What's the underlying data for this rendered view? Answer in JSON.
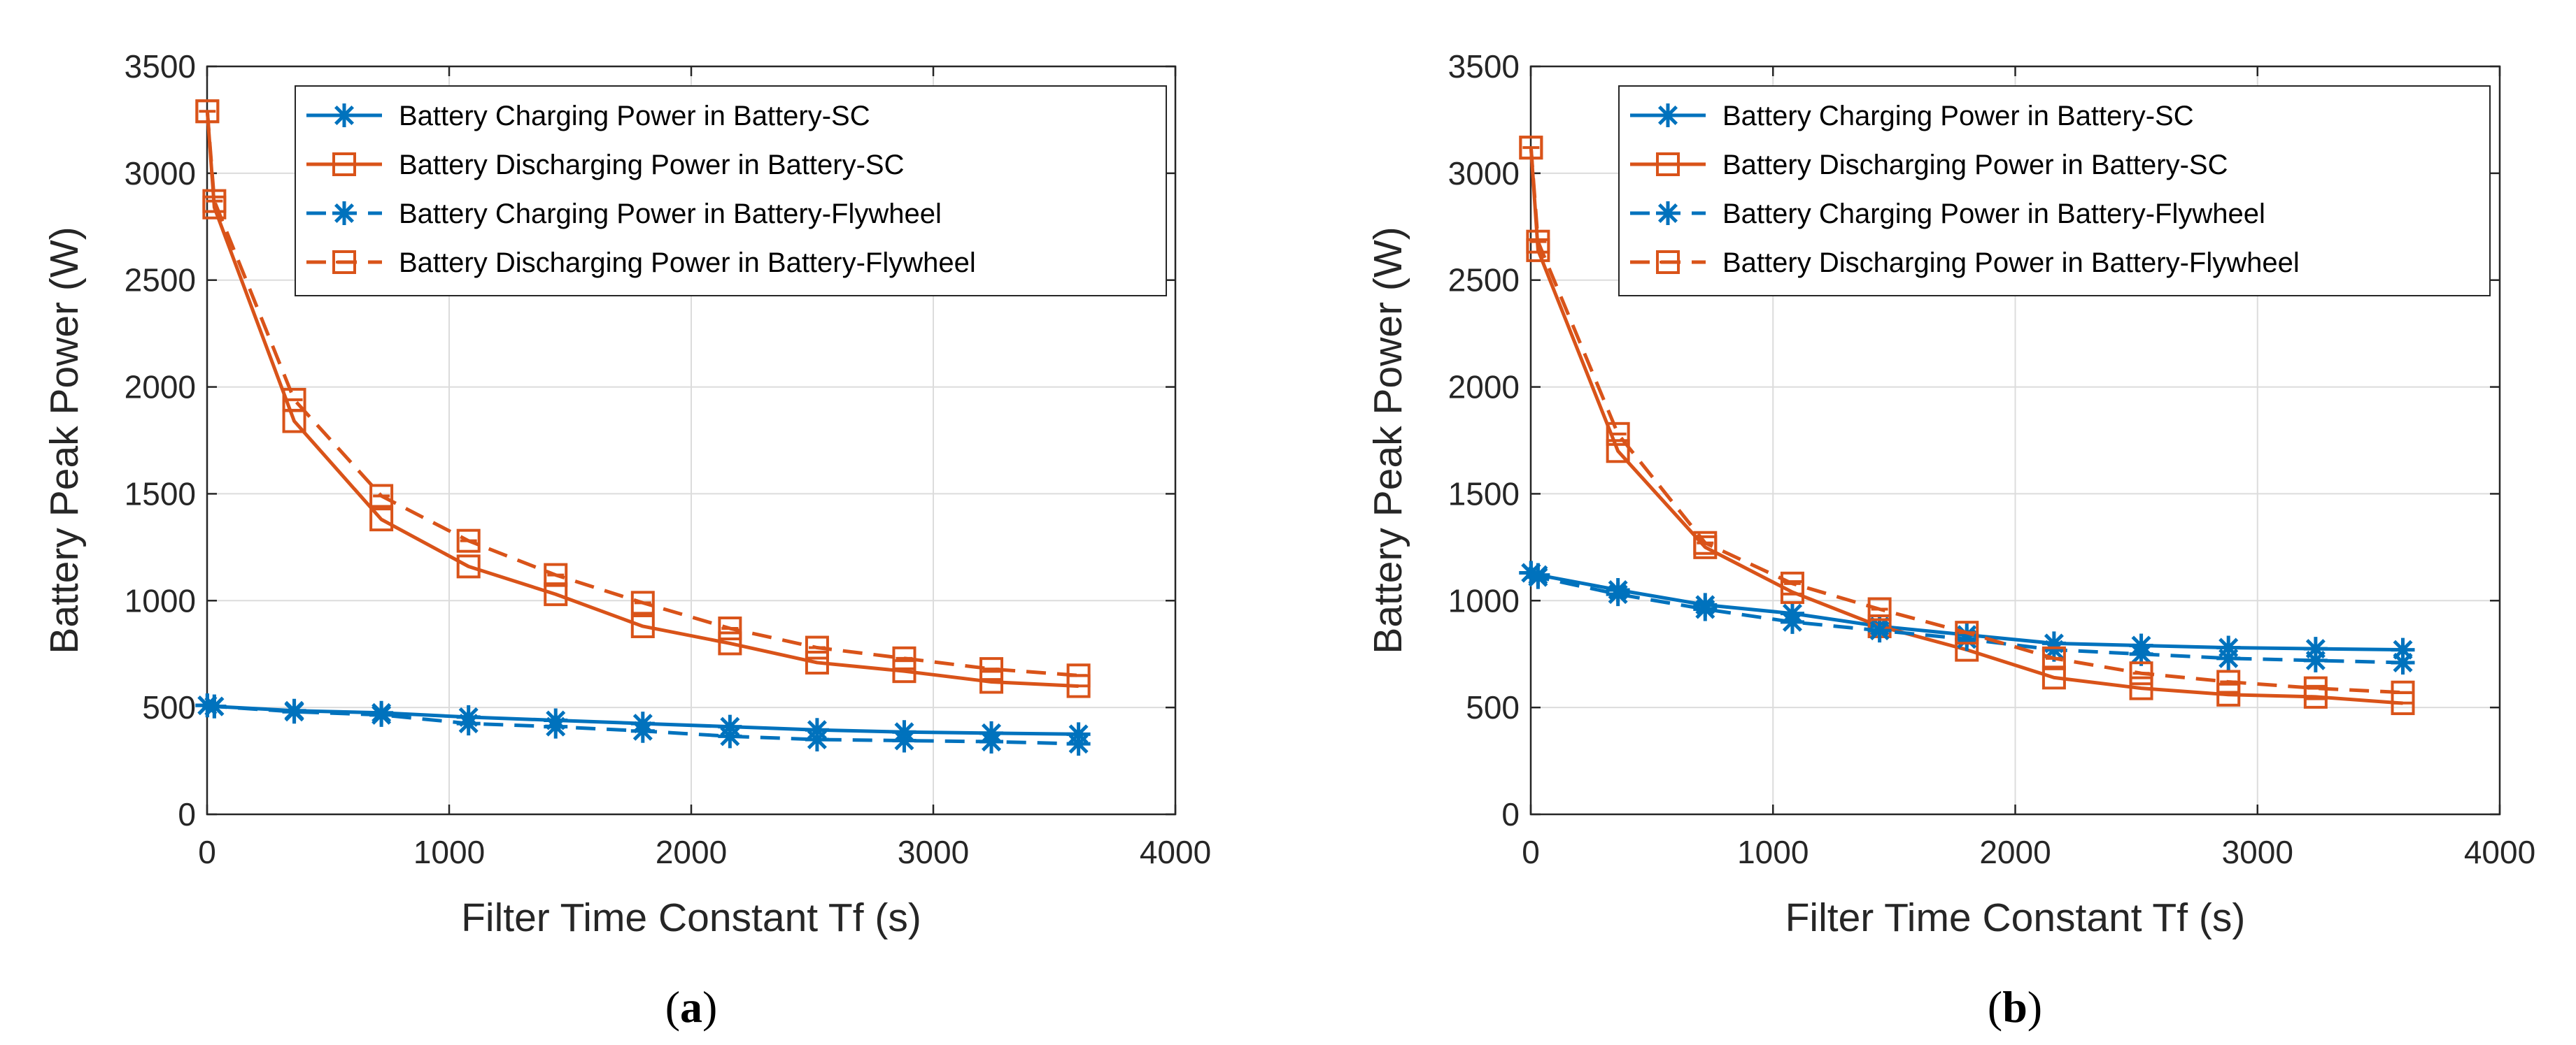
{
  "colors": {
    "blue": "#0072BD",
    "orange": "#D95319",
    "grid": "#dcdcdc",
    "axis": "#262626"
  },
  "chart_data": [
    {
      "type": "line",
      "panel_label": "a",
      "xlabel": "Filter Time Constant Tf (s)",
      "ylabel": "Battery Peak Power (W)",
      "xlim": [
        0,
        4000
      ],
      "ylim": [
        0,
        3500
      ],
      "xticks": [
        "0",
        "1000",
        "2000",
        "3000",
        "4000"
      ],
      "yticks": [
        "0",
        "500",
        "1000",
        "1500",
        "2000",
        "2500",
        "3000",
        "3500"
      ],
      "grid": true,
      "legend_position": "top-right",
      "x": [
        1,
        30,
        360,
        720,
        1080,
        1440,
        1800,
        2160,
        2520,
        2880,
        3240,
        3600
      ],
      "series": [
        {
          "name": "Battery Charging Power in Battery-SC",
          "color": "blue",
          "dash": "solid",
          "marker": "star",
          "values": [
            510,
            505,
            485,
            475,
            455,
            440,
            425,
            410,
            395,
            385,
            380,
            375
          ]
        },
        {
          "name": "Battery Discharging Power in Battery-SC",
          "color": "orange",
          "dash": "solid",
          "marker": "square",
          "values": [
            3290,
            2840,
            1840,
            1380,
            1160,
            1030,
            880,
            800,
            710,
            670,
            620,
            600
          ]
        },
        {
          "name": "Battery Charging Power in Battery-Flywheel",
          "color": "blue",
          "dash": "dashed",
          "marker": "star",
          "values": [
            510,
            505,
            480,
            465,
            425,
            410,
            390,
            365,
            350,
            345,
            340,
            330
          ]
        },
        {
          "name": "Battery Discharging Power in Battery-Flywheel",
          "color": "orange",
          "dash": "dashed",
          "marker": "square-dot",
          "values": [
            3290,
            2870,
            1940,
            1490,
            1280,
            1120,
            990,
            870,
            780,
            730,
            680,
            650
          ]
        }
      ]
    },
    {
      "type": "line",
      "panel_label": "b",
      "xlabel": "Filter Time Constant Tf (s)",
      "ylabel": "Battery Peak Power (W)",
      "xlim": [
        0,
        4000
      ],
      "ylim": [
        0,
        3500
      ],
      "xticks": [
        "0",
        "1000",
        "2000",
        "3000",
        "4000"
      ],
      "yticks": [
        "0",
        "500",
        "1000",
        "1500",
        "2000",
        "2500",
        "3000",
        "3500"
      ],
      "grid": true,
      "legend_position": "top-right",
      "x": [
        1,
        30,
        360,
        720,
        1080,
        1440,
        1800,
        2160,
        2520,
        2880,
        3240,
        3600
      ],
      "series": [
        {
          "name": "Battery Charging Power in Battery-SC",
          "color": "blue",
          "dash": "solid",
          "marker": "star",
          "values": [
            1130,
            1120,
            1050,
            980,
            940,
            880,
            840,
            800,
            790,
            780,
            775,
            770
          ]
        },
        {
          "name": "Battery Discharging Power in Battery-SC",
          "color": "orange",
          "dash": "solid",
          "marker": "square",
          "values": [
            3120,
            2640,
            1700,
            1250,
            1040,
            880,
            770,
            640,
            590,
            560,
            550,
            520
          ]
        },
        {
          "name": "Battery Charging Power in Battery-Flywheel",
          "color": "blue",
          "dash": "dashed",
          "marker": "star",
          "values": [
            1130,
            1110,
            1030,
            960,
            900,
            860,
            820,
            770,
            750,
            730,
            720,
            710
          ]
        },
        {
          "name": "Battery Discharging Power in Battery-Flywheel",
          "color": "orange",
          "dash": "dashed",
          "marker": "square-dot",
          "values": [
            3120,
            2680,
            1780,
            1270,
            1080,
            960,
            850,
            730,
            660,
            620,
            590,
            570
          ]
        }
      ]
    }
  ]
}
